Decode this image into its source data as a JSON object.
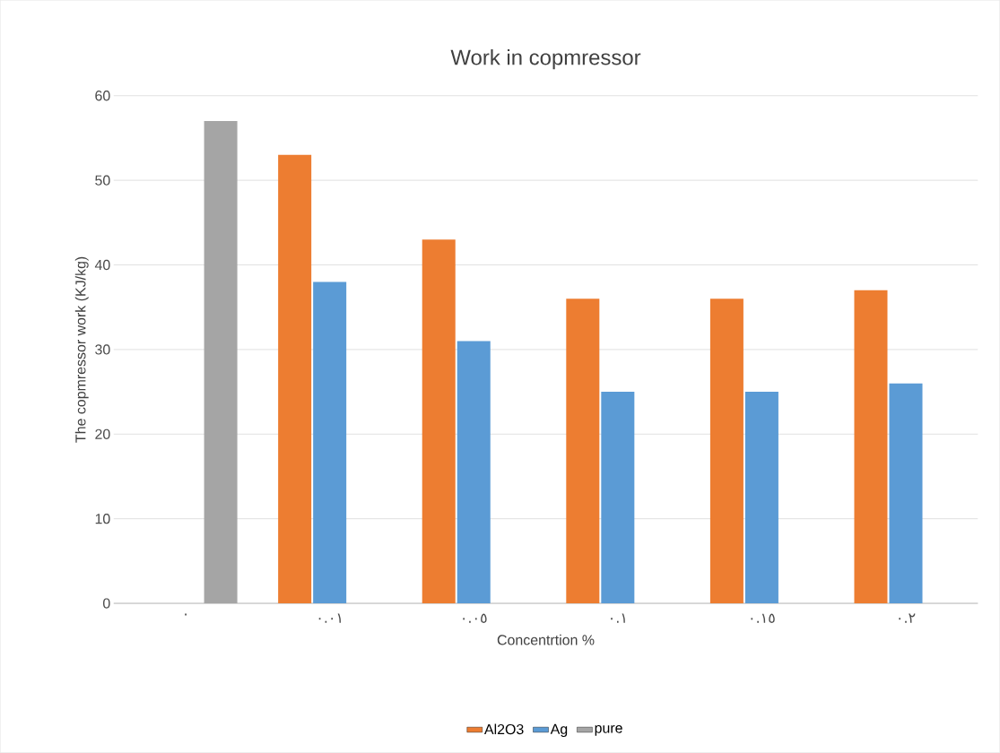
{
  "chart_data": {
    "type": "bar",
    "title": "Work in copmressor",
    "xlabel": "Concentrtion %",
    "ylabel": "The copmressor work (KJ/kg)",
    "categories": [
      "٠",
      "٠.٠١",
      "٠.٠٥",
      "٠.١",
      "٠.١٥",
      "٠.٢"
    ],
    "series": [
      {
        "name": "Al2O3",
        "color": "#ed7d31",
        "values": [
          null,
          53,
          43,
          36,
          36,
          37
        ]
      },
      {
        "name": "Ag",
        "color": "#5b9bd5",
        "values": [
          null,
          38,
          31,
          25,
          25,
          26
        ]
      },
      {
        "name": "pure",
        "color": "#a5a5a5",
        "values": [
          57,
          null,
          null,
          null,
          null,
          null
        ]
      }
    ],
    "ylim": [
      0,
      60
    ],
    "yticks": [
      0,
      10,
      20,
      30,
      40,
      50,
      60
    ],
    "grid": "y",
    "legend": "bottom"
  }
}
